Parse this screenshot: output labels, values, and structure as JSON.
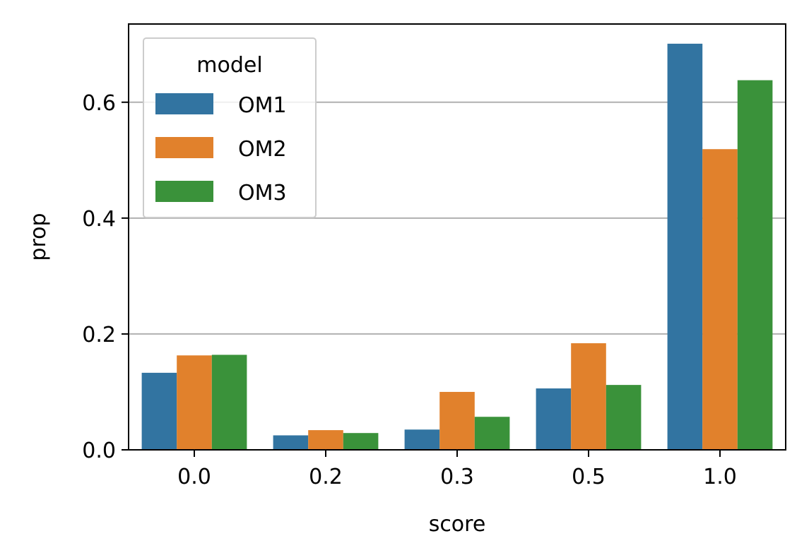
{
  "chart_data": {
    "type": "bar",
    "categories": [
      "0.0",
      "0.2",
      "0.3",
      "0.5",
      "1.0"
    ],
    "series": [
      {
        "name": "OM1",
        "color": "#3274a1",
        "values": [
          0.133,
          0.025,
          0.035,
          0.106,
          0.701
        ]
      },
      {
        "name": "OM2",
        "color": "#e1812c",
        "values": [
          0.163,
          0.034,
          0.1,
          0.184,
          0.519
        ]
      },
      {
        "name": "OM3",
        "color": "#3a923a",
        "values": [
          0.164,
          0.029,
          0.057,
          0.112,
          0.638
        ]
      }
    ],
    "xlabel": "score",
    "ylabel": "prop",
    "ylim": [
      0,
      0.735
    ],
    "yticks": [
      0.0,
      0.2,
      0.4,
      0.6
    ],
    "ytick_labels": [
      "0.0",
      "0.2",
      "0.4",
      "0.6"
    ],
    "grid": "y-major",
    "legend": {
      "title": "model",
      "placement": "top-left"
    }
  }
}
